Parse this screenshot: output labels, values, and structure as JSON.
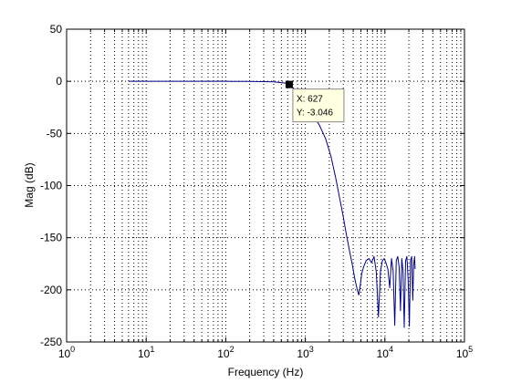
{
  "chart_data": {
    "type": "line",
    "title": "",
    "xlabel": "Frequency (Hz)",
    "ylabel": "Mag (dB)",
    "x_scale": "log",
    "xlim": [
      1,
      100000
    ],
    "ylim": [
      -250,
      50
    ],
    "x_ticks": [
      {
        "base": "10",
        "exp": "0"
      },
      {
        "base": "10",
        "exp": "1"
      },
      {
        "base": "10",
        "exp": "2"
      },
      {
        "base": "10",
        "exp": "3"
      },
      {
        "base": "10",
        "exp": "4"
      },
      {
        "base": "10",
        "exp": "5"
      }
    ],
    "y_ticks": [
      50,
      0,
      -50,
      -100,
      -150,
      -200,
      -250
    ],
    "grid": true,
    "grid_style": "dotted",
    "line_color": "#00008b",
    "series": [
      {
        "x": [
          6,
          10,
          20,
          50,
          100,
          200,
          400,
          600,
          627,
          700,
          800,
          1000,
          1200,
          1500,
          1800,
          2100,
          2400,
          2700,
          3000,
          3300,
          3600,
          3900,
          4200,
          4500,
          4700,
          4900,
          5100,
          5400,
          5800,
          6300,
          6800,
          7300,
          7800,
          8300,
          8800,
          9300,
          9800,
          10300,
          10900,
          11500,
          12100,
          12700,
          13300,
          13900,
          14500,
          15100,
          15700,
          16300,
          16900,
          17500,
          18200,
          18900,
          19600,
          20300,
          21000,
          21700,
          22400,
          23000,
          23600,
          24000
        ],
        "y": [
          0,
          0,
          0,
          0,
          0,
          -0.1,
          -0.5,
          -1.9,
          -3.046,
          -6,
          -12,
          -22,
          -30,
          -42,
          -55,
          -72,
          -92,
          -112,
          -130,
          -148,
          -163,
          -176,
          -190,
          -200,
          -205,
          -196,
          -185,
          -178,
          -172,
          -170,
          -174,
          -168,
          -183,
          -226,
          -182,
          -172,
          -170,
          -174,
          -180,
          -198,
          -170,
          -182,
          -234,
          -172,
          -168,
          -178,
          -220,
          -170,
          -182,
          -236,
          -172,
          -168,
          -190,
          -235,
          -172,
          -168,
          -210,
          -176,
          -168,
          -180
        ]
      }
    ],
    "datatip": {
      "x_text": "X: 627",
      "y_text": "Y: -3.046",
      "x": 627,
      "y": -3.046
    }
  }
}
